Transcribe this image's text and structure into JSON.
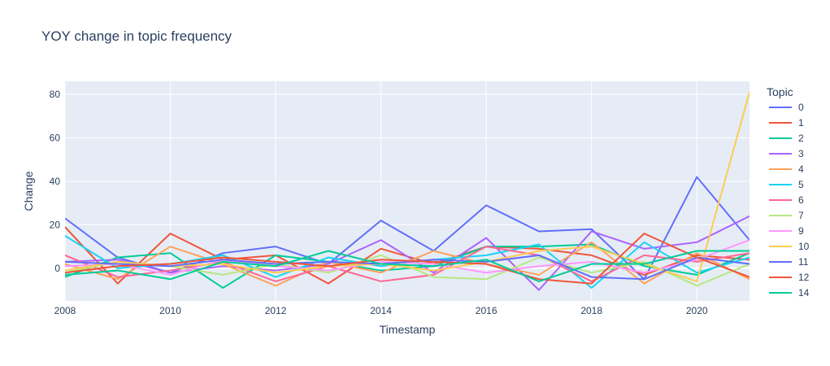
{
  "chart_data": {
    "type": "line",
    "title": "YOY change in topic frequency",
    "xlabel": "Timestamp",
    "ylabel": "Change",
    "xlim": [
      2008,
      2021
    ],
    "ylim": [
      -15,
      86
    ],
    "x_ticks": [
      2008,
      2010,
      2012,
      2014,
      2016,
      2018,
      2020
    ],
    "y_ticks": [
      0,
      20,
      40,
      60,
      80
    ],
    "grid": true,
    "legend_title": "Topic",
    "legend_position": "right",
    "x": [
      2008,
      2009,
      2010,
      2011,
      2012,
      2013,
      2014,
      2015,
      2016,
      2017,
      2018,
      2019,
      2020,
      2021
    ],
    "series": [
      {
        "name": "0",
        "color": "#636efa",
        "values": [
          23,
          5,
          -2,
          7,
          10,
          2,
          22,
          8,
          29,
          17,
          18,
          -5,
          42,
          13
        ]
      },
      {
        "name": "1",
        "color": "#EF553B",
        "values": [
          19,
          -7,
          16,
          4,
          6,
          -7,
          9,
          2,
          10,
          9,
          6,
          -3,
          6,
          4
        ]
      },
      {
        "name": "2",
        "color": "#00cc96",
        "values": [
          -4,
          5,
          7,
          -9,
          6,
          3,
          -1,
          1,
          10,
          10,
          11,
          1,
          -3,
          7
        ]
      },
      {
        "name": "3",
        "color": "#ab63fa",
        "values": [
          3,
          4,
          -2,
          1,
          -1,
          2,
          13,
          -2,
          14,
          -10,
          17,
          9,
          12,
          24
        ]
      },
      {
        "name": "4",
        "color": "#FFA15A",
        "values": [
          2,
          -5,
          10,
          2,
          -8,
          3,
          -2,
          8,
          2,
          -3,
          12,
          -7,
          7,
          -5
        ]
      },
      {
        "name": "5",
        "color": "#19d3f3",
        "values": [
          15,
          0,
          2,
          6,
          -4,
          5,
          1,
          4,
          6,
          11,
          -9,
          12,
          -2,
          5
        ]
      },
      {
        "name": "6",
        "color": "#FF6692",
        "values": [
          6,
          -4,
          -1,
          3,
          -6,
          1,
          -6,
          -3,
          10,
          6,
          -6,
          6,
          3,
          7
        ]
      },
      {
        "name": "7",
        "color": "#B6E880",
        "values": [
          -2,
          3,
          1,
          -3,
          2,
          -2,
          6,
          -4,
          -5,
          5,
          -2,
          3,
          -8,
          2
        ]
      },
      {
        "name": "9",
        "color": "#FF97FF",
        "values": [
          1,
          2,
          -3,
          4,
          1,
          -1,
          3,
          2,
          -2,
          1,
          3,
          -2,
          4,
          13
        ]
      },
      {
        "name": "10",
        "color": "#FECB52",
        "values": [
          -1,
          3,
          1,
          2,
          -2,
          1,
          2,
          -1,
          3,
          8,
          10,
          2,
          -6,
          81
        ]
      },
      {
        "name": "11",
        "color": "#636efa",
        "values": [
          3,
          2,
          1,
          4,
          2,
          3,
          2,
          4,
          3,
          6,
          -4,
          -5,
          5,
          2
        ]
      },
      {
        "name": "12",
        "color": "#EF553B",
        "values": [
          -2,
          1,
          2,
          5,
          3,
          1,
          4,
          3,
          2,
          -5,
          -7,
          16,
          5,
          -4
        ]
      },
      {
        "name": "14",
        "color": "#00cc96",
        "values": [
          -3,
          -1,
          -5,
          3,
          1,
          8,
          2,
          1,
          4,
          -6,
          2,
          2,
          8,
          8
        ]
      }
    ]
  }
}
